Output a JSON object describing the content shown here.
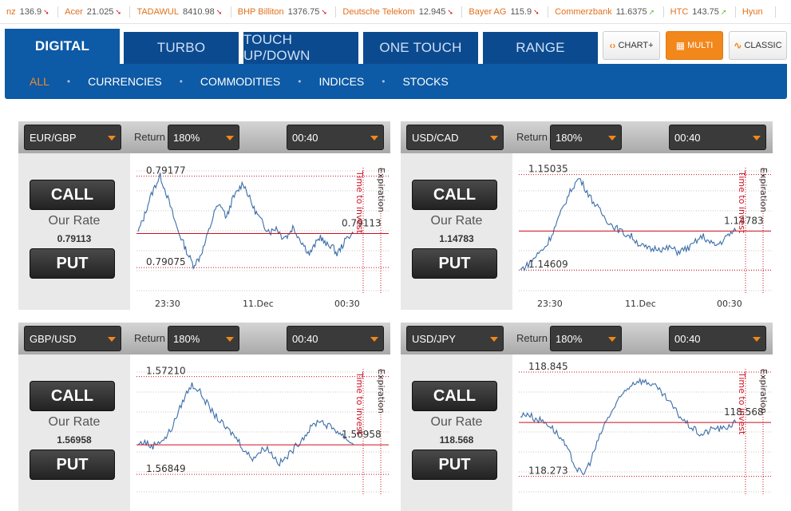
{
  "ticker": [
    {
      "name": "nz",
      "value": "136.9",
      "dir": "down"
    },
    {
      "name": "Acer",
      "value": "21.025",
      "dir": "down"
    },
    {
      "name": "TADAWUL",
      "value": "8410.98",
      "dir": "down"
    },
    {
      "name": "BHP Billiton",
      "value": "1376.75",
      "dir": "down"
    },
    {
      "name": "Deutsche Telekom",
      "value": "12.945",
      "dir": "down"
    },
    {
      "name": "Bayer AG",
      "value": "115.9",
      "dir": "down"
    },
    {
      "name": "Commerzbank",
      "value": "11.6375",
      "dir": "up"
    },
    {
      "name": "HTC",
      "value": "143.75",
      "dir": "up"
    },
    {
      "name": "Hyun",
      "value": "",
      "dir": ""
    }
  ],
  "tabs": [
    "DIGITAL",
    "TURBO",
    "TOUCH UP/DOWN",
    "ONE TOUCH",
    "RANGE"
  ],
  "side_buttons": {
    "chart_plus": "CHART+",
    "multi": "MULTI",
    "classic": "CLASSIC"
  },
  "subnav": [
    "ALL",
    "CURRENCIES",
    "COMMODITIES",
    "INDICES",
    "STOCKS"
  ],
  "labels": {
    "return": "Return",
    "call": "CALL",
    "put": "PUT",
    "our_rate": "Our Rate",
    "time_to_invest": "Time to invest",
    "expiration": "Expiration"
  },
  "colors": {
    "accent": "#f2871b",
    "nav": "#0d5aa6",
    "rate_line": "#cc1122",
    "series": "#3b6ea8"
  },
  "panels": [
    {
      "pair": "EUR/GBP",
      "return": "180%",
      "time": "00:40",
      "rate": "0.79113",
      "chart_data": {
        "type": "line",
        "high": "0.79177",
        "low": "0.79075",
        "current": "0.79113",
        "x_ticks": [
          "23:30",
          "11.Dec",
          "00:30"
        ],
        "ylim": [
          0.7906,
          0.7919
        ],
        "values": [
          0.79115,
          0.7913,
          0.7915,
          0.79165,
          0.79177,
          0.7916,
          0.7914,
          0.7912,
          0.79105,
          0.7909,
          0.79078,
          0.79085,
          0.791,
          0.7912,
          0.7914,
          0.79145,
          0.7913,
          0.7915,
          0.7916,
          0.7917,
          0.79155,
          0.7914,
          0.7913,
          0.7912,
          0.79115,
          0.7912,
          0.7911,
          0.7911,
          0.7912,
          0.7911,
          0.791,
          0.7909,
          0.791,
          0.7911,
          0.791,
          0.791,
          0.7909,
          0.791,
          0.7911,
          0.79113
        ]
      }
    },
    {
      "pair": "USD/CAD",
      "return": "180%",
      "time": "00:40",
      "rate": "1.14783",
      "chart_data": {
        "type": "line",
        "high": "1.15035",
        "low": "1.14609",
        "current": "1.14783",
        "x_ticks": [
          "23:30",
          "11.Dec",
          "00:30"
        ],
        "ylim": [
          1.1456,
          1.1508
        ],
        "values": [
          1.1461,
          1.1463,
          1.1466,
          1.1469,
          1.1472,
          1.1478,
          1.1485,
          1.1492,
          1.1498,
          1.1502,
          1.1497,
          1.1492,
          1.1488,
          1.1484,
          1.1481,
          1.1479,
          1.1477,
          1.1476,
          1.1473,
          1.1471,
          1.147,
          1.1471,
          1.147,
          1.1471,
          1.1469,
          1.147,
          1.1471,
          1.1474,
          1.1476,
          1.1473,
          1.1472,
          1.1474,
          1.1477,
          1.14783
        ]
      }
    },
    {
      "pair": "GBP/USD",
      "return": "180%",
      "time": "00:40",
      "rate": "1.56958",
      "chart_data": {
        "type": "line",
        "high": "1.57210",
        "low": "1.56849",
        "current": "1.56958",
        "x_ticks": [],
        "ylim": [
          1.5682,
          1.5725
        ],
        "values": [
          1.5696,
          1.5697,
          1.5695,
          1.5697,
          1.5698,
          1.5702,
          1.5708,
          1.5714,
          1.5718,
          1.5716,
          1.5712,
          1.5708,
          1.5705,
          1.5702,
          1.57,
          1.5697,
          1.5693,
          1.5691,
          1.5693,
          1.5695,
          1.5692,
          1.5689,
          1.5691,
          1.5694,
          1.5697,
          1.57,
          1.5703,
          1.5705,
          1.5703,
          1.5702,
          1.57,
          1.5698,
          1.56958
        ]
      }
    },
    {
      "pair": "USD/JPY",
      "return": "180%",
      "time": "00:40",
      "rate": "118.568",
      "chart_data": {
        "type": "line",
        "high": "118.845",
        "low": "118.273",
        "current": "118.568",
        "x_ticks": [],
        "ylim": [
          118.24,
          118.88
        ],
        "values": [
          118.6,
          118.62,
          118.59,
          118.58,
          118.56,
          118.52,
          118.47,
          118.4,
          118.32,
          118.28,
          118.35,
          118.45,
          118.55,
          118.62,
          118.68,
          118.74,
          118.78,
          118.8,
          118.79,
          118.78,
          118.74,
          118.7,
          118.65,
          118.6,
          118.56,
          118.53,
          118.5,
          118.52,
          118.54,
          118.53,
          118.55,
          118.568
        ]
      }
    }
  ]
}
